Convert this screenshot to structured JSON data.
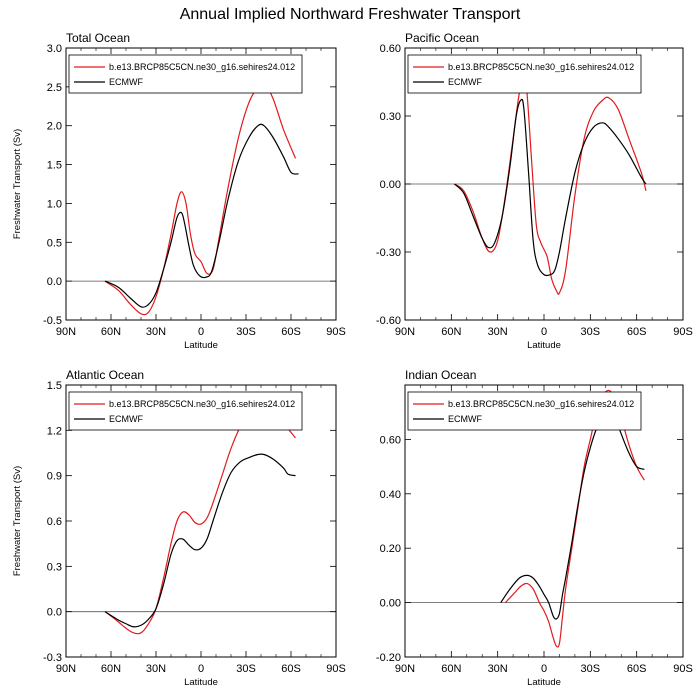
{
  "figure": {
    "title": "Annual Implied Northward Freshwater Transport"
  },
  "chart_data": [
    {
      "type": "line",
      "title": "Total Ocean",
      "xlabel": "Latitude",
      "ylabel": "Freshwater Transport (Sv)",
      "xlim": [
        -90,
        90
      ],
      "ylim": [
        -0.5,
        3.0
      ],
      "xticks": [
        -90,
        -60,
        -30,
        0,
        30,
        60,
        90
      ],
      "xticklabels": [
        "90N",
        "60N",
        "30N",
        "0",
        "30S",
        "60S",
        "90S"
      ],
      "yticks": [
        -0.5,
        0.0,
        0.5,
        1.0,
        1.5,
        2.0,
        2.5,
        3.0
      ],
      "yticklabels": [
        "-0.5",
        "0.0",
        "0.5",
        "1.0",
        "1.5",
        "2.0",
        "2.5",
        "3.0"
      ],
      "zero_line": true,
      "legend": "top-left",
      "series": [
        {
          "name": "b.e13.BRCP85C5CN.ne30_g16.sehires24.012",
          "color": "#e41a1c",
          "x": [
            -64,
            -55,
            -47,
            -40,
            -35,
            -30,
            -25,
            -20,
            -16,
            -13,
            -10,
            -7,
            -4,
            0,
            4,
            8,
            12,
            18,
            25,
            32,
            38,
            42,
            48,
            55,
            63
          ],
          "y": [
            0.0,
            -0.12,
            -0.3,
            -0.42,
            -0.4,
            -0.2,
            0.15,
            0.6,
            1.0,
            1.15,
            1.0,
            0.6,
            0.35,
            0.25,
            0.1,
            0.15,
            0.55,
            1.2,
            1.85,
            2.3,
            2.5,
            2.55,
            2.35,
            1.95,
            1.58
          ]
        },
        {
          "name": "ECMWF",
          "color": "#000000",
          "x": [
            -64,
            -55,
            -47,
            -40,
            -35,
            -30,
            -25,
            -20,
            -16,
            -13,
            -11,
            -8,
            -5,
            -1,
            3,
            7,
            12,
            18,
            25,
            32,
            38,
            42,
            48,
            55,
            60,
            65
          ],
          "y": [
            0.0,
            -0.08,
            -0.22,
            -0.33,
            -0.3,
            -0.15,
            0.15,
            0.5,
            0.82,
            0.88,
            0.75,
            0.45,
            0.2,
            0.07,
            0.05,
            0.12,
            0.5,
            1.05,
            1.55,
            1.85,
            2.0,
            2.0,
            1.85,
            1.6,
            1.4,
            1.38
          ]
        }
      ]
    },
    {
      "type": "line",
      "title": "Pacific Ocean",
      "xlabel": "Latitude",
      "ylabel": "",
      "xlim": [
        -90,
        90
      ],
      "ylim": [
        -0.6,
        0.6
      ],
      "xticks": [
        -90,
        -60,
        -30,
        0,
        30,
        60,
        90
      ],
      "xticklabels": [
        "90N",
        "60N",
        "30N",
        "0",
        "30S",
        "60S",
        "90S"
      ],
      "yticks": [
        -0.6,
        -0.3,
        0.0,
        0.3,
        0.6
      ],
      "yticklabels": [
        "-0.60",
        "-0.30",
        "0.00",
        "0.30",
        "0.60"
      ],
      "zero_line": true,
      "legend": "top-left",
      "series": [
        {
          "name": "b.e13.BRCP85C5CN.ne30_g16.sehires24.012",
          "color": "#e41a1c",
          "x": [
            -58,
            -52,
            -46,
            -40,
            -35,
            -30,
            -25,
            -20,
            -16,
            -13,
            -11,
            -8,
            -5,
            -2,
            2,
            5,
            8,
            10,
            14,
            20,
            26,
            32,
            38,
            42,
            48,
            55,
            63,
            66
          ],
          "y": [
            0.0,
            -0.03,
            -0.12,
            -0.24,
            -0.3,
            -0.25,
            -0.05,
            0.2,
            0.4,
            0.46,
            0.4,
            0.1,
            -0.18,
            -0.26,
            -0.32,
            -0.42,
            -0.47,
            -0.48,
            -0.38,
            -0.05,
            0.2,
            0.32,
            0.37,
            0.38,
            0.33,
            0.2,
            0.05,
            -0.03
          ]
        },
        {
          "name": "ECMWF",
          "color": "#000000",
          "x": [
            -58,
            -52,
            -46,
            -40,
            -36,
            -32,
            -27,
            -22,
            -18,
            -15,
            -13,
            -10,
            -7,
            -4,
            0,
            4,
            7,
            10,
            14,
            20,
            26,
            32,
            38,
            42,
            48,
            55,
            63,
            66
          ],
          "y": [
            0.0,
            -0.04,
            -0.14,
            -0.24,
            -0.28,
            -0.26,
            -0.14,
            0.08,
            0.3,
            0.37,
            0.33,
            0.05,
            -0.25,
            -0.36,
            -0.4,
            -0.4,
            -0.38,
            -0.3,
            -0.15,
            0.05,
            0.18,
            0.25,
            0.27,
            0.25,
            0.2,
            0.13,
            0.03,
            0.0
          ]
        }
      ]
    },
    {
      "type": "line",
      "title": "Atlantic Ocean",
      "xlabel": "Latitude",
      "ylabel": "Freshwater Transport (Sv)",
      "xlim": [
        -90,
        90
      ],
      "ylim": [
        -0.3,
        1.5
      ],
      "xticks": [
        -90,
        -60,
        -30,
        0,
        30,
        60,
        90
      ],
      "xticklabels": [
        "90N",
        "60N",
        "30N",
        "0",
        "30S",
        "60S",
        "90S"
      ],
      "yticks": [
        -0.3,
        0.0,
        0.3,
        0.6,
        0.9,
        1.2,
        1.5
      ],
      "yticklabels": [
        "-0.3",
        "0.0",
        "0.3",
        "0.6",
        "0.9",
        "1.2",
        "1.5"
      ],
      "zero_line": true,
      "legend": "top-left",
      "series": [
        {
          "name": "b.e13.BRCP85C5CN.ne30_g16.sehires24.012",
          "color": "#e41a1c",
          "x": [
            -64,
            -56,
            -50,
            -45,
            -40,
            -35,
            -30,
            -25,
            -20,
            -16,
            -12,
            -8,
            -4,
            0,
            4,
            8,
            14,
            20,
            26,
            32,
            38,
            42,
            48,
            55,
            63
          ],
          "y": [
            0.0,
            -0.06,
            -0.11,
            -0.14,
            -0.14,
            -0.08,
            0.02,
            0.22,
            0.45,
            0.6,
            0.66,
            0.64,
            0.59,
            0.58,
            0.62,
            0.72,
            0.9,
            1.08,
            1.22,
            1.32,
            1.38,
            1.4,
            1.36,
            1.25,
            1.15
          ]
        },
        {
          "name": "ECMWF",
          "color": "#000000",
          "x": [
            -64,
            -56,
            -50,
            -45,
            -40,
            -35,
            -30,
            -25,
            -20,
            -16,
            -12,
            -8,
            -4,
            0,
            4,
            8,
            14,
            20,
            26,
            32,
            38,
            42,
            48,
            55,
            58,
            63
          ],
          "y": [
            0.0,
            -0.05,
            -0.08,
            -0.1,
            -0.09,
            -0.05,
            0.02,
            0.18,
            0.38,
            0.47,
            0.48,
            0.44,
            0.41,
            0.42,
            0.48,
            0.6,
            0.78,
            0.92,
            0.99,
            1.02,
            1.04,
            1.04,
            1.01,
            0.95,
            0.91,
            0.9
          ]
        }
      ]
    },
    {
      "type": "line",
      "title": "Indian Ocean",
      "xlabel": "Latitude",
      "ylabel": "",
      "xlim": [
        -90,
        90
      ],
      "ylim": [
        -0.2,
        0.8
      ],
      "xticks": [
        -90,
        -60,
        -30,
        0,
        30,
        60,
        90
      ],
      "xticklabels": [
        "90N",
        "60N",
        "30N",
        "0",
        "30S",
        "60S",
        "90S"
      ],
      "yticks": [
        -0.2,
        0.0,
        0.2,
        0.4,
        0.6
      ],
      "yticklabels": [
        "-0.20",
        "0.00",
        "0.20",
        "0.40",
        "0.60"
      ],
      "zero_line": true,
      "legend": "top-left",
      "series": [
        {
          "name": "b.e13.BRCP85C5CN.ne30_g16.sehires24.012",
          "color": "#e41a1c",
          "x": [
            -25,
            -20,
            -15,
            -11,
            -7,
            -3,
            0,
            3,
            6,
            8,
            10,
            12,
            14,
            18,
            22,
            26,
            30,
            34,
            38,
            42,
            46,
            50,
            55,
            60,
            65
          ],
          "y": [
            0.0,
            0.03,
            0.06,
            0.07,
            0.05,
            0.0,
            -0.03,
            -0.07,
            -0.13,
            -0.16,
            -0.15,
            -0.05,
            0.05,
            0.2,
            0.35,
            0.5,
            0.6,
            0.7,
            0.76,
            0.78,
            0.75,
            0.68,
            0.58,
            0.5,
            0.45
          ]
        },
        {
          "name": "ECMWF",
          "color": "#000000",
          "x": [
            -28,
            -22,
            -16,
            -11,
            -7,
            -3,
            0,
            3,
            6,
            8,
            10,
            12,
            14,
            18,
            22,
            26,
            30,
            34,
            38,
            42,
            46,
            50,
            55,
            60,
            65
          ],
          "y": [
            0.0,
            0.05,
            0.09,
            0.1,
            0.09,
            0.06,
            0.03,
            0.0,
            -0.05,
            -0.06,
            -0.04,
            0.03,
            0.09,
            0.22,
            0.36,
            0.48,
            0.57,
            0.64,
            0.69,
            0.7,
            0.68,
            0.62,
            0.55,
            0.5,
            0.49
          ]
        }
      ]
    }
  ]
}
